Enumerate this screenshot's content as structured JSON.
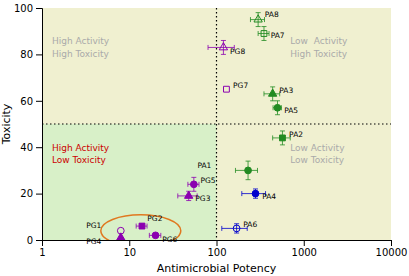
{
  "chart_data": {
    "type": "scatter",
    "xlabel": "Antimicrobial Potency",
    "ylabel": "Toxicity",
    "log": "x",
    "grid": false,
    "xlim": [
      1,
      10000
    ],
    "ylim": [
      0,
      100
    ],
    "xticks": [
      1,
      10,
      100,
      1000,
      10000
    ],
    "yticks": [
      0,
      20,
      40,
      60,
      80,
      100
    ],
    "background": "#f0f0d0",
    "shaded_region": {
      "x": [
        1,
        100
      ],
      "y": [
        0,
        50
      ],
      "color": "#d8f0c8"
    },
    "vline": 100,
    "hline": 50,
    "series": [
      {
        "name": "PA8",
        "x": [
          300
        ],
        "values": [
          95
        ],
        "xerr": [
          55
        ],
        "yerr": [
          3
        ],
        "color": "#228B22",
        "marker": "triangle-open"
      },
      {
        "name": "PA7",
        "x": [
          350
        ],
        "values": [
          89
        ],
        "xerr": [
          50
        ],
        "yerr": [
          3
        ],
        "color": "#228B22",
        "marker": "square-open"
      },
      {
        "name": "PG8",
        "x": [
          120
        ],
        "values": [
          83
        ],
        "xerr": [
          40
        ],
        "yerr": [
          3
        ],
        "color": "#8B00B0",
        "marker": "triangle-open"
      },
      {
        "name": "PA3",
        "x": [
          440
        ],
        "values": [
          63
        ],
        "xerr": [
          90
        ],
        "yerr": [
          3
        ],
        "color": "#228B22",
        "marker": "triangle"
      },
      {
        "name": "PG7",
        "x": [
          130
        ],
        "values": [
          65
        ],
        "xerr": [
          0
        ],
        "yerr": [
          0
        ],
        "color": "#8B00B0",
        "marker": "square-open"
      },
      {
        "name": "PA5",
        "x": [
          500
        ],
        "values": [
          57
        ],
        "xerr": [
          55
        ],
        "yerr": [
          3
        ],
        "color": "#228B22",
        "marker": "circle"
      },
      {
        "name": "PA2",
        "x": [
          570
        ],
        "values": [
          44
        ],
        "xerr": [
          130
        ],
        "yerr": [
          3
        ],
        "color": "#228B22",
        "marker": "square"
      },
      {
        "name": "PA1",
        "x": [
          230
        ],
        "values": [
          30
        ],
        "xerr": [
          65
        ],
        "yerr": [
          4
        ],
        "color": "#228B22",
        "marker": "circle"
      },
      {
        "name": "PG5",
        "x": [
          55
        ],
        "values": [
          24
        ],
        "xerr": [
          8
        ],
        "yerr": [
          3
        ],
        "color": "#8B00B0",
        "marker": "circle"
      },
      {
        "name": "PA4",
        "x": [
          280
        ],
        "values": [
          20
        ],
        "xerr": [
          85
        ],
        "yerr": [
          2
        ],
        "color": "#0000CD",
        "marker": "circle"
      },
      {
        "name": "PG3",
        "x": [
          48
        ],
        "values": [
          19
        ],
        "xerr": [
          12
        ],
        "yerr": [
          2
        ],
        "color": "#8B00B0",
        "marker": "triangle"
      },
      {
        "name": "PG1",
        "x": [
          8
        ],
        "values": [
          4
        ],
        "xerr": [
          0
        ],
        "yerr": [
          0
        ],
        "color": "#8B00B0",
        "marker": "circle-open"
      },
      {
        "name": "PG4",
        "x": [
          8
        ],
        "values": [
          1
        ],
        "xerr": [
          0
        ],
        "yerr": [
          0
        ],
        "color": "#8B00B0",
        "marker": "triangle"
      },
      {
        "name": "PG2",
        "x": [
          14
        ],
        "values": [
          6
        ],
        "xerr": [
          2
        ],
        "yerr": [
          1
        ],
        "color": "#8B00B0",
        "marker": "square"
      },
      {
        "name": "PG6",
        "x": [
          20
        ],
        "values": [
          2
        ],
        "xerr": [
          3
        ],
        "yerr": [
          0
        ],
        "color": "#8B00B0",
        "marker": "circle"
      },
      {
        "name": "PA6",
        "x": [
          170
        ],
        "values": [
          5
        ],
        "xerr": [
          55
        ],
        "yerr": [
          2
        ],
        "color": "#0000CD",
        "marker": "circle-open"
      }
    ],
    "annotations": [
      {
        "text": "High Activity\nHigh Toxicity",
        "x": 1.3,
        "y": 83,
        "color": "#aaaaaa"
      },
      {
        "text": "Low  Activity\nHigh Toxicity",
        "x": 700,
        "y": 83,
        "color": "#aaaaaa"
      },
      {
        "text": "High Activity\nLow Toxicity",
        "x": 1.3,
        "y": 37,
        "color": "#cc0000"
      },
      {
        "text": "Low Activity\nLow Toxicity",
        "x": 700,
        "y": 37,
        "color": "#aaaaaa"
      }
    ],
    "highlight": {
      "series": [
        "PG1",
        "PG2",
        "PG4",
        "PG6"
      ],
      "color": "#e07820"
    }
  }
}
